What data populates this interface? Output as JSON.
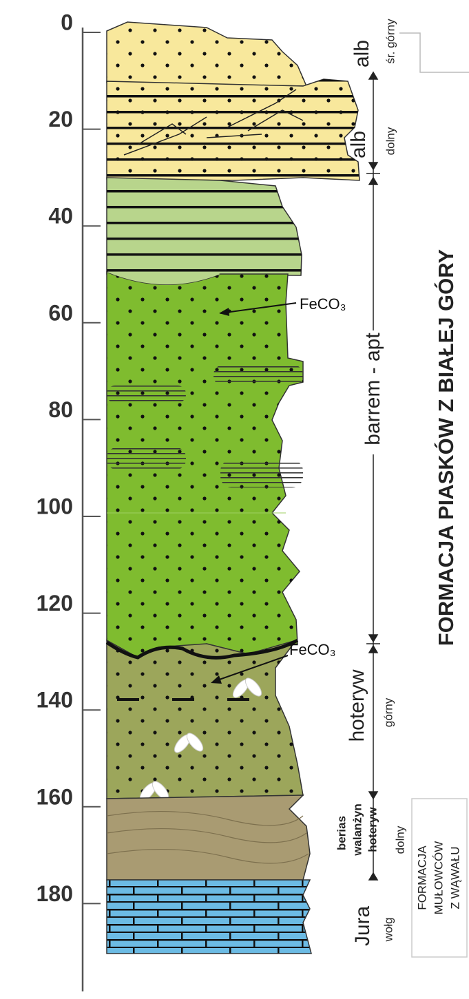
{
  "depth_axis": {
    "labels": [
      "0",
      "20",
      "40",
      "60",
      "80",
      "100",
      "120",
      "140",
      "160",
      "180"
    ]
  },
  "stages": {
    "alb_upper": "alb",
    "alb_upper_note": "śr. górny",
    "alb_lower": "alb",
    "alb_lower_note": "dolny",
    "barrem_apt": "barrem - apt",
    "hoteryw_upper": "hoteryw",
    "hoteryw_upper_note": "górny",
    "berias": "berias",
    "walanzyn": "walanżyn",
    "hoteryw_lower": "hoteryw",
    "hoteryw_lower_note": "dolny",
    "jura": "Jura",
    "jura_note": "wołg"
  },
  "annotations": [
    "FeCO₃",
    "FeCO₃"
  ],
  "formations": {
    "upper": "FORMACJA PIASKÓW Z BIAŁEJ GÓRY",
    "lower": [
      "FORMACJA",
      "MUŁOWCÓW",
      "Z WĄWAŁU"
    ]
  }
}
